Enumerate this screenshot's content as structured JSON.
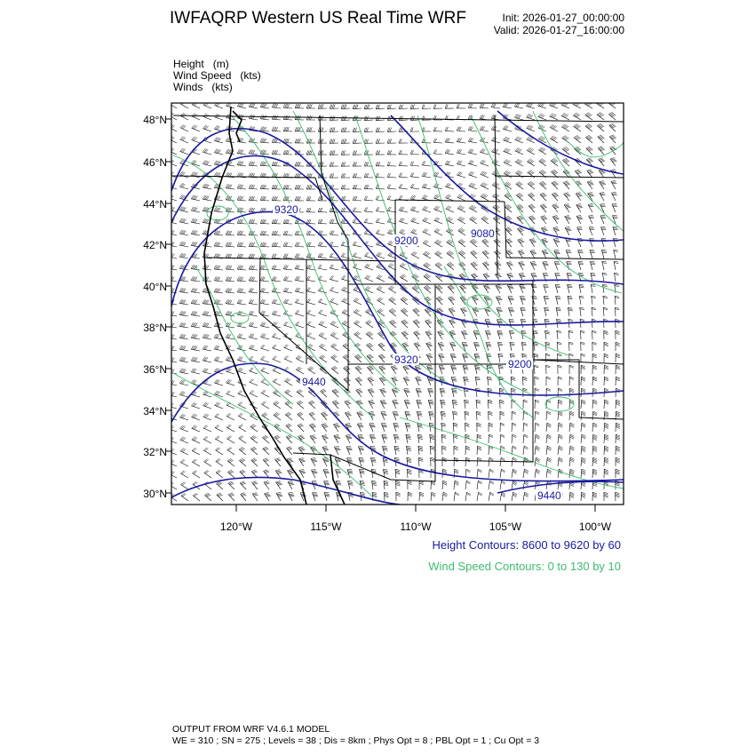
{
  "header": {
    "title": "IWFAQRP Western US Real Time WRF",
    "init": "Init: 2026-01-27_00:00:00",
    "valid": "Valid: 2026-01-27_16:00:00"
  },
  "fields": [
    {
      "name": "Height",
      "unit": "(m)"
    },
    {
      "name": "Wind Speed",
      "unit": "(kts)"
    },
    {
      "name": "Winds",
      "unit": "(kts)"
    }
  ],
  "map": {
    "lat_labels": [
      "48°N",
      "46°N",
      "44°N",
      "42°N",
      "40°N",
      "38°N",
      "36°N",
      "34°N",
      "32°N",
      "30°N"
    ],
    "lon_labels": [
      "120°W",
      "115°W",
      "110°W",
      "105°W",
      "100°W"
    ],
    "height_contour_labels": [
      "9320",
      "9200",
      "9080",
      "9320",
      "9200",
      "9440",
      "9440"
    ],
    "colors": {
      "height": "#1a1aa0",
      "wind_speed": "#3cbd6e",
      "border": "#000000"
    }
  },
  "legend": {
    "height_contours": "Height Contours: 8600 to 9620 by 60",
    "wind_contours": "Wind Speed Contours: 0 to 130 by 10"
  },
  "footer": {
    "line1": "OUTPUT FROM WRF V4.6.1 MODEL",
    "line2": "WE = 310 ; SN = 275 ; Levels = 38 ; Dis = 8km ; Phys Opt = 8 ; PBL Opt = 1 ; Cu Opt = 3"
  }
}
